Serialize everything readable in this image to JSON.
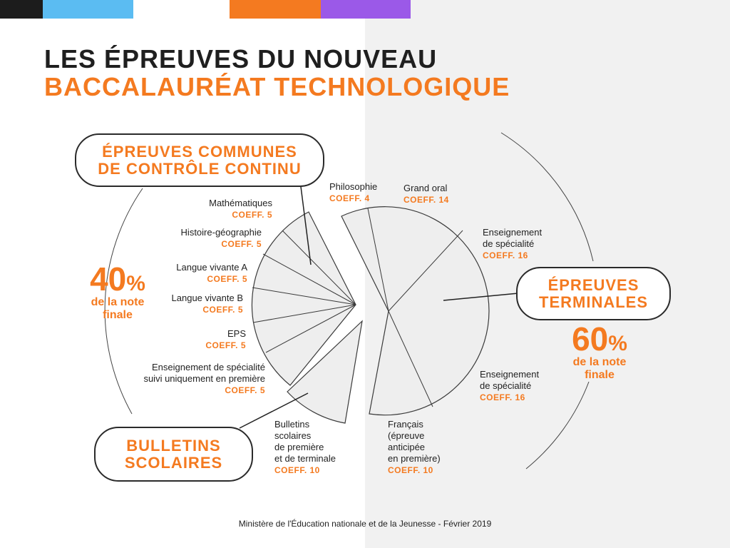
{
  "colors": {
    "accent": "#f47a20",
    "dark": "#1f1f1f",
    "right_bg": "#f1f1f1",
    "slice_fill": "#eeeeee"
  },
  "top_bars": [
    "#1c1c1c",
    "#5bbcf2",
    "#ffffff",
    "#f47a20",
    "#9b59e8"
  ],
  "title": {
    "line1": "LES ÉPREUVES DU NOUVEAU",
    "line2": "BACCALAURÉAT TECHNOLOGIQUE"
  },
  "groups": {
    "controle_continu": "ÉPREUVES COMMUNES\nDE CONTRÔLE CONTINU",
    "bulletins": "BULLETINS\nSCOLAIRES",
    "terminales": "ÉPREUVES\nTERMINALES"
  },
  "percent_left": {
    "value": "40",
    "sign": "%",
    "caption": "de la note\nfinale"
  },
  "percent_right": {
    "value": "60",
    "sign": "%",
    "caption": "de la note\nfinale"
  },
  "epreuves": {
    "maths": {
      "name": "Mathématiques",
      "coeff": "COEFF. 5"
    },
    "histoire": {
      "name": "Histoire-géographie",
      "coeff": "COEFF. 5"
    },
    "lva": {
      "name": "Langue vivante A",
      "coeff": "COEFF. 5"
    },
    "lvb": {
      "name": "Langue vivante B",
      "coeff": "COEFF. 5"
    },
    "eps": {
      "name": "EPS",
      "coeff": "COEFF. 5"
    },
    "spe_premiere": {
      "name1": "Enseignement de spécialité",
      "name2": "suivi uniquement en première",
      "coeff": "COEFF. 5"
    },
    "bulletins": {
      "name1": "Bulletins",
      "name2": "scolaires",
      "name3": "de première",
      "name4": "et de terminale",
      "coeff": "COEFF. 10"
    },
    "philo": {
      "name": "Philosophie",
      "coeff": "COEFF. 4"
    },
    "grand_oral": {
      "name": "Grand oral",
      "coeff": "COEFF. 14"
    },
    "spe1": {
      "name1": "Enseignement",
      "name2": "de spécialité",
      "coeff": "COEFF. 16"
    },
    "spe2": {
      "name1": "Enseignement",
      "name2": "de spécialité",
      "coeff": "COEFF. 16"
    },
    "francais": {
      "name1": "Français",
      "name2": "(épreuve",
      "name3": "anticipée",
      "name4": "en première)",
      "coeff": "COEFF. 10"
    }
  },
  "source": "Ministère de l'Éducation nationale et de la Jeunesse - Février 2019"
}
